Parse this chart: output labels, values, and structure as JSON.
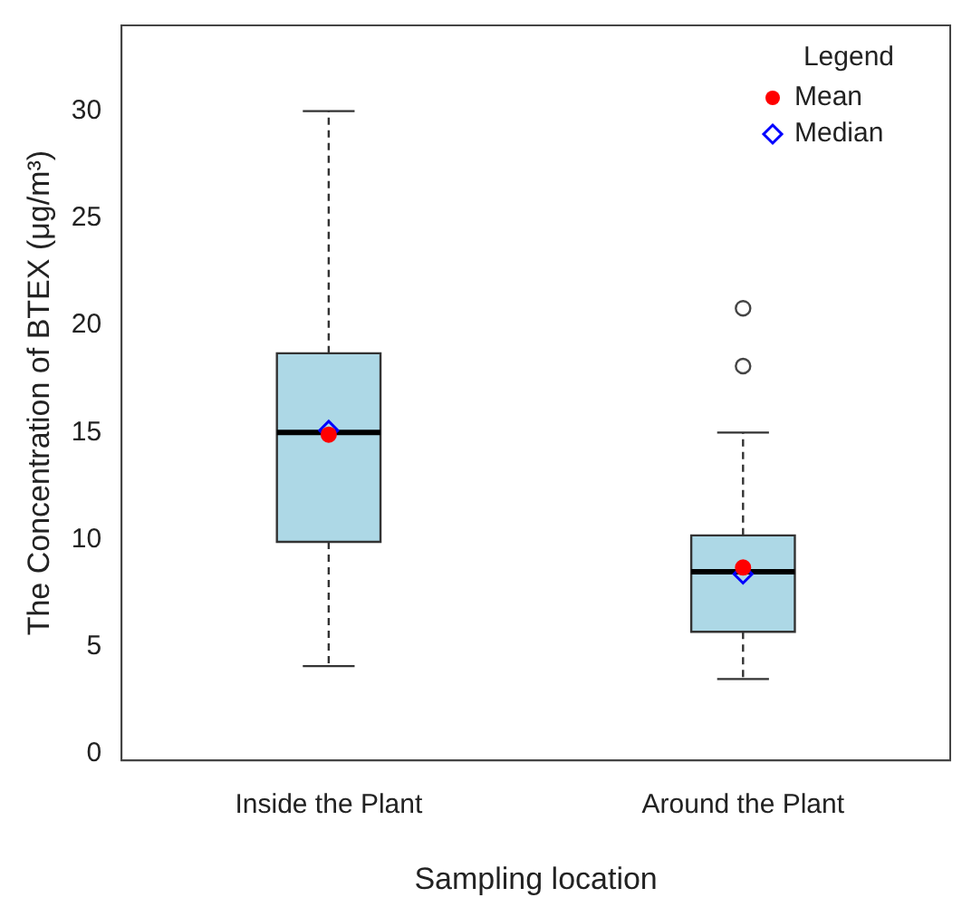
{
  "chart_data": {
    "type": "box",
    "xlabel": "Sampling location",
    "ylabel": "The Concentration of BTEX (μg/m³)",
    "legend_title": "Legend",
    "legend": "top right",
    "grid": false,
    "categories": [
      "Inside the Plant",
      "Around the Plant"
    ],
    "ylim": [
      -0.3,
      34
    ],
    "yticks": [
      0,
      5,
      10,
      15,
      20,
      25,
      30
    ],
    "series": [
      {
        "type": "box",
        "color": "#add8e6",
        "boxes": [
          {
            "low": 4.1,
            "q1": 9.9,
            "median": 15,
            "q3": 18.7,
            "high": 30
          },
          {
            "low": 3.5,
            "q1": 5.7,
            "median": 8.5,
            "q3": 10.2,
            "high": 15,
            "outliers": [
              18.1,
              20.8
            ]
          }
        ]
      },
      {
        "type": "scatter",
        "name": "Mean",
        "color": "#ff0000",
        "marker": "circle",
        "x": [
          "Inside the Plant",
          "Around the Plant"
        ],
        "values": [
          14.9,
          8.7
        ]
      },
      {
        "type": "scatter",
        "name": "Median",
        "color": "#0000ff",
        "marker": "diamond",
        "x": [
          "Inside the Plant",
          "Around the Plant"
        ],
        "values": [
          15.1,
          8.4
        ]
      }
    ]
  }
}
